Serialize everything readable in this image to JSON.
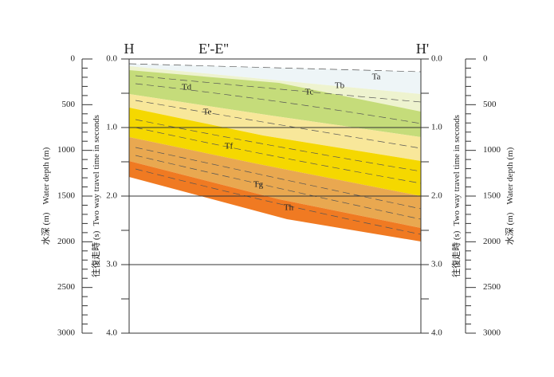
{
  "header": {
    "left": "H",
    "center": "E'-E''",
    "right": "H'"
  },
  "depth_axis": {
    "label_ja": "水深 (m)",
    "label_en": "Water depth (m)",
    "ticks": [
      "0",
      "500",
      "1000",
      "1500",
      "2000",
      "2500",
      "3000"
    ]
  },
  "time_axis": {
    "label_ja": "往復走時 (s)",
    "label_en": "Two way travel time in seconds",
    "ticks": [
      "0.0",
      "1.0",
      "2.0",
      "3.0",
      "4.0"
    ]
  },
  "layers": [
    {
      "label": "Ta"
    },
    {
      "label": "Tb"
    },
    {
      "label": "Tc"
    },
    {
      "label": "Td"
    },
    {
      "label": "Te"
    },
    {
      "label": "Tf"
    },
    {
      "label": "Tg"
    },
    {
      "label": "Th"
    }
  ]
}
